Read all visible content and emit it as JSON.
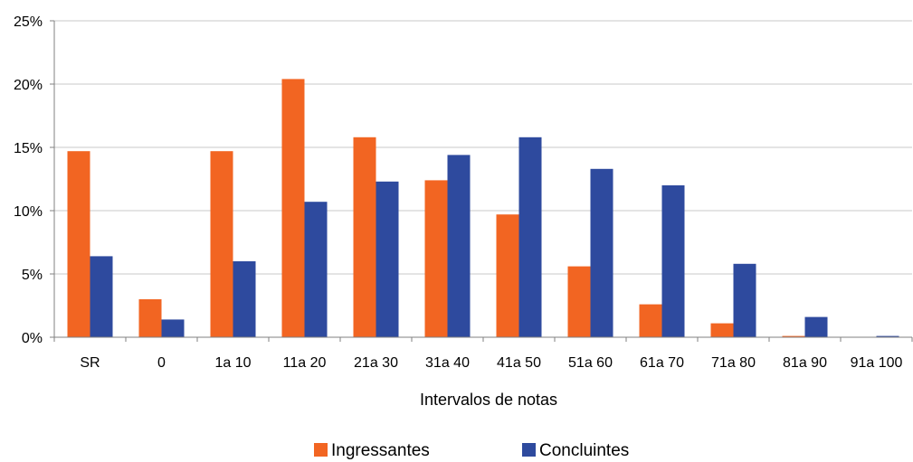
{
  "chart_data": {
    "type": "bar",
    "categories": [
      "SR",
      "0",
      "1a 10",
      "11a 20",
      "21a 30",
      "31a 40",
      "41a 50",
      "51a 60",
      "61a 70",
      "71a 80",
      "81a 90",
      "91a 100"
    ],
    "series": [
      {
        "name": "Ingressantes",
        "color": "#F26522",
        "values": [
          14.7,
          3.0,
          14.7,
          20.4,
          15.8,
          12.4,
          9.7,
          5.6,
          2.6,
          1.1,
          0.1,
          0.0
        ]
      },
      {
        "name": "Concluintes",
        "color": "#2E4A9E",
        "values": [
          6.4,
          1.4,
          6.0,
          10.7,
          12.3,
          14.4,
          15.8,
          13.3,
          12.0,
          5.8,
          1.6,
          0.1
        ]
      }
    ],
    "xlabel": "Intervalos de notas",
    "ylabel": "",
    "ylim": [
      0,
      25
    ],
    "yticks": [
      "0%",
      "5%",
      "10%",
      "15%",
      "20%",
      "25%"
    ],
    "grid": true,
    "legend_position": "bottom"
  }
}
